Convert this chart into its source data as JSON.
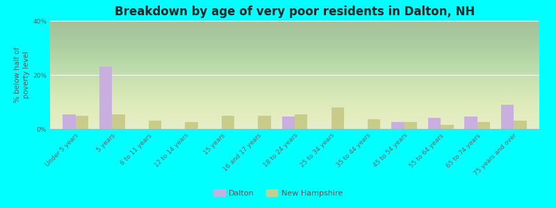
{
  "title": "Breakdown by age of very poor residents in Dalton, NH",
  "ylabel": "% below half of\npoverty level",
  "categories": [
    "Under 5 years",
    "5 years",
    "6 to 11 years",
    "12 to 14 years",
    "15 years",
    "16 and 17 years",
    "18 to 24 years",
    "25 to 34 years",
    "35 to 44 years",
    "45 to 54 years",
    "55 to 64 years",
    "65 to 74 years",
    "75 years and over"
  ],
  "dalton": [
    5.5,
    23.0,
    0.0,
    0.0,
    0.0,
    0.0,
    4.5,
    0.0,
    0.0,
    2.5,
    4.0,
    4.5,
    9.0
  ],
  "nh": [
    5.0,
    5.5,
    3.0,
    2.5,
    5.0,
    5.0,
    5.5,
    8.0,
    3.5,
    2.5,
    1.5,
    2.5,
    3.0
  ],
  "dalton_color": "#c9aee0",
  "nh_color": "#c8cc88",
  "ylim": [
    0,
    40
  ],
  "yticks": [
    0,
    20,
    40
  ],
  "ytick_labels": [
    "0%",
    "20%",
    "40%"
  ],
  "background_color": "#00ffff",
  "title_fontsize": 12,
  "axis_label_fontsize": 7.5,
  "tick_fontsize": 6.5,
  "legend_dalton": "Dalton",
  "legend_nh": "New Hampshire",
  "bar_width": 0.35
}
